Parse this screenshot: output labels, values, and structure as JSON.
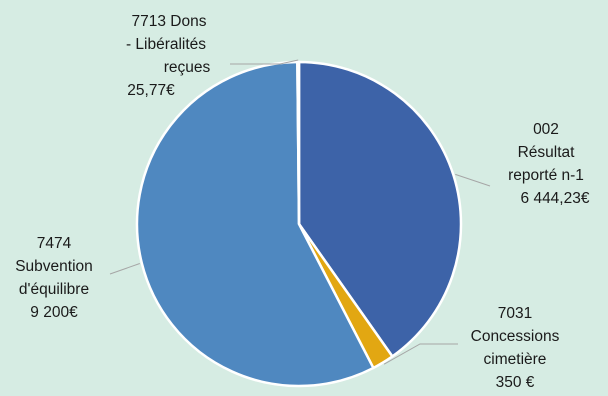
{
  "chart_data": {
    "type": "pie",
    "title": "",
    "currency": "€",
    "slices": [
      {
        "code": "002",
        "name_lines": [
          "Résultat",
          "reporté n-1"
        ],
        "value": 6444.23,
        "value_label": "6 444,23€",
        "color": "#3d63a8"
      },
      {
        "code": "7031",
        "name_lines": [
          "Concessions",
          "cimetière"
        ],
        "value": 350,
        "value_label": "350 €",
        "color": "#e2a712"
      },
      {
        "code": "7474",
        "name_lines": [
          "Subvention",
          "d'équilibre"
        ],
        "value": 9200,
        "value_label": "9 200€",
        "color": "#4f88c0"
      },
      {
        "code": "7713",
        "name_lines": [
          "Dons",
          "- Libéralités",
          "reçues"
        ],
        "value": 25.77,
        "value_label": "25,77€",
        "color": "#3c9a57"
      }
    ]
  },
  "labels": {
    "l0": {
      "line1": "002",
      "line2": "Résultat",
      "line3": "reporté n-1",
      "line4": "6 444,23€"
    },
    "l1": {
      "line1": "7031",
      "line2": "Concessions",
      "line3": "cimetière",
      "line4": "350 €"
    },
    "l2": {
      "line1": "7474",
      "line2": "Subvention",
      "line3": "d'équilibre",
      "line4": "9 200€"
    },
    "l3": {
      "line1": "7713   Dons",
      "line2": "- Libéralités",
      "line3": "reçues",
      "line4": "25,77€"
    }
  }
}
